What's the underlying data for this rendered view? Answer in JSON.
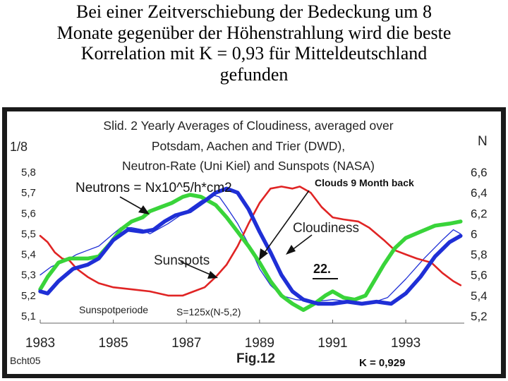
{
  "heading": {
    "line1": "Bei einer Zeitverschiebung der Bedeckung um 8",
    "line2": "Monate gegenüber der Höhenstrahlung wird die beste",
    "line3": "Korrelation mit K = 0,93  für Mitteldeutschland",
    "line4": "gefunden"
  },
  "chart_data": {
    "type": "line",
    "title": [
      "Slid. 2 Yearly Averages of Cloudiness, averaged over",
      "Potsdam, Aachen and Trier (DWD),",
      "Neutron-Rate (Uni Kiel) and Sunspots (NASA)"
    ],
    "ylabel_left": "1/8",
    "ylabel_right": "N",
    "xlim": [
      1983,
      1994.6
    ],
    "ylim_left": [
      5.1,
      5.8
    ],
    "ylim_right": [
      5.2,
      6.6
    ],
    "x_ticks": [
      "1983",
      "1985",
      "1987",
      "1989",
      "1991",
      "1993"
    ],
    "y_ticks_left": [
      "5,8",
      "5,7",
      "5,6",
      "5,5",
      "5,4",
      "5,3",
      "5,2",
      "5,1"
    ],
    "y_ticks_right": [
      "6,6",
      "6,4",
      "6,2",
      "6",
      "5,8",
      "5,6",
      "5,4",
      "5,2"
    ],
    "annotations": {
      "neutrons": "Neutrons = Nx10^5/h*cm2",
      "clouds_back": "Clouds 9 Month back",
      "cloudiness": "Cloudiness",
      "sunspots": "Sunspots",
      "number": "22.",
      "sunspotperiode": "Sunspotperiode",
      "formula": "S=125x(N-5,2)"
    },
    "footer": {
      "left": "Bcht05",
      "center": "Fig.12",
      "right": "K = 0,929"
    },
    "series": [
      {
        "key": "neutrons_thin",
        "color": "#1f2fd6",
        "axis": "left",
        "points": [
          [
            1983.0,
            5.3
          ],
          [
            1983.3,
            5.34
          ],
          [
            1983.7,
            5.37
          ],
          [
            1984.0,
            5.4
          ],
          [
            1984.3,
            5.42
          ],
          [
            1984.6,
            5.44
          ],
          [
            1985.0,
            5.5
          ],
          [
            1985.2,
            5.53
          ],
          [
            1985.5,
            5.53
          ],
          [
            1985.8,
            5.52
          ],
          [
            1986.0,
            5.5
          ],
          [
            1986.5,
            5.55
          ],
          [
            1987.0,
            5.61
          ],
          [
            1987.4,
            5.66
          ],
          [
            1987.7,
            5.69
          ],
          [
            1987.9,
            5.68
          ],
          [
            1988.1,
            5.63
          ],
          [
            1988.4,
            5.55
          ],
          [
            1988.7,
            5.45
          ],
          [
            1989.0,
            5.33
          ],
          [
            1989.3,
            5.25
          ],
          [
            1989.6,
            5.2
          ],
          [
            1990.0,
            5.18
          ],
          [
            1990.5,
            5.17
          ],
          [
            1991.0,
            5.18
          ],
          [
            1991.5,
            5.17
          ],
          [
            1992.0,
            5.16
          ],
          [
            1992.5,
            5.19
          ],
          [
            1993.0,
            5.28
          ],
          [
            1993.5,
            5.38
          ],
          [
            1994.0,
            5.47
          ],
          [
            1994.3,
            5.52
          ],
          [
            1994.5,
            5.5
          ]
        ]
      },
      {
        "key": "sunspots",
        "color": "#e02424",
        "axis": "left",
        "points": [
          [
            1983.0,
            5.49
          ],
          [
            1983.2,
            5.46
          ],
          [
            1983.4,
            5.41
          ],
          [
            1983.6,
            5.38
          ],
          [
            1983.8,
            5.37
          ],
          [
            1984.0,
            5.33
          ],
          [
            1984.3,
            5.29
          ],
          [
            1984.6,
            5.26
          ],
          [
            1985.0,
            5.24
          ],
          [
            1985.5,
            5.23
          ],
          [
            1986.0,
            5.22
          ],
          [
            1986.5,
            5.2
          ],
          [
            1986.9,
            5.2
          ],
          [
            1987.2,
            5.22
          ],
          [
            1987.5,
            5.24
          ],
          [
            1987.8,
            5.29
          ],
          [
            1988.1,
            5.35
          ],
          [
            1988.4,
            5.44
          ],
          [
            1988.7,
            5.55
          ],
          [
            1989.0,
            5.65
          ],
          [
            1989.3,
            5.72
          ],
          [
            1989.6,
            5.73
          ],
          [
            1989.9,
            5.72
          ],
          [
            1990.1,
            5.73
          ],
          [
            1990.4,
            5.7
          ],
          [
            1990.7,
            5.63
          ],
          [
            1991.0,
            5.58
          ],
          [
            1991.3,
            5.57
          ],
          [
            1991.7,
            5.56
          ],
          [
            1992.0,
            5.53
          ],
          [
            1992.4,
            5.47
          ],
          [
            1992.7,
            5.42
          ],
          [
            1993.0,
            5.4
          ],
          [
            1993.3,
            5.38
          ],
          [
            1993.7,
            5.36
          ],
          [
            1994.0,
            5.31
          ],
          [
            1994.3,
            5.27
          ],
          [
            1994.5,
            5.25
          ]
        ]
      },
      {
        "key": "cloudiness",
        "color": "#39d43a",
        "axis": "left",
        "points": [
          [
            1983.0,
            5.23
          ],
          [
            1983.2,
            5.29
          ],
          [
            1983.5,
            5.36
          ],
          [
            1983.8,
            5.38
          ],
          [
            1984.0,
            5.38
          ],
          [
            1984.3,
            5.38
          ],
          [
            1984.6,
            5.39
          ],
          [
            1984.9,
            5.45
          ],
          [
            1985.2,
            5.52
          ],
          [
            1985.5,
            5.56
          ],
          [
            1985.8,
            5.58
          ],
          [
            1986.0,
            5.61
          ],
          [
            1986.3,
            5.63
          ],
          [
            1986.6,
            5.65
          ],
          [
            1986.9,
            5.68
          ],
          [
            1987.1,
            5.69
          ],
          [
            1987.4,
            5.68
          ],
          [
            1987.8,
            5.64
          ],
          [
            1988.1,
            5.58
          ],
          [
            1988.4,
            5.51
          ],
          [
            1988.7,
            5.44
          ],
          [
            1989.0,
            5.36
          ],
          [
            1989.3,
            5.27
          ],
          [
            1989.6,
            5.2
          ],
          [
            1989.9,
            5.16
          ],
          [
            1990.2,
            5.13
          ],
          [
            1990.5,
            5.16
          ],
          [
            1990.8,
            5.2
          ],
          [
            1991.0,
            5.22
          ],
          [
            1991.3,
            5.19
          ],
          [
            1991.6,
            5.18
          ],
          [
            1991.9,
            5.2
          ],
          [
            1992.1,
            5.26
          ],
          [
            1992.4,
            5.35
          ],
          [
            1992.7,
            5.43
          ],
          [
            1993.0,
            5.48
          ],
          [
            1993.4,
            5.51
          ],
          [
            1993.8,
            5.54
          ],
          [
            1994.2,
            5.55
          ],
          [
            1994.5,
            5.56
          ]
        ]
      },
      {
        "key": "neutrons_thick",
        "color": "#1f2fd6",
        "axis": "left",
        "points": [
          [
            1983.0,
            5.22
          ],
          [
            1983.2,
            5.21
          ],
          [
            1983.5,
            5.27
          ],
          [
            1983.9,
            5.33
          ],
          [
            1984.3,
            5.35
          ],
          [
            1984.6,
            5.38
          ],
          [
            1985.0,
            5.47
          ],
          [
            1985.4,
            5.52
          ],
          [
            1985.8,
            5.51
          ],
          [
            1986.1,
            5.52
          ],
          [
            1986.4,
            5.56
          ],
          [
            1986.7,
            5.59
          ],
          [
            1987.1,
            5.61
          ],
          [
            1987.5,
            5.66
          ],
          [
            1987.8,
            5.7
          ],
          [
            1988.1,
            5.72
          ],
          [
            1988.4,
            5.7
          ],
          [
            1988.7,
            5.62
          ],
          [
            1989.0,
            5.51
          ],
          [
            1989.3,
            5.41
          ],
          [
            1989.6,
            5.3
          ],
          [
            1989.9,
            5.22
          ],
          [
            1990.2,
            5.18
          ],
          [
            1990.6,
            5.16
          ],
          [
            1991.0,
            5.16
          ],
          [
            1991.4,
            5.17
          ],
          [
            1991.8,
            5.16
          ],
          [
            1992.2,
            5.17
          ],
          [
            1992.6,
            5.16
          ],
          [
            1993.0,
            5.21
          ],
          [
            1993.4,
            5.29
          ],
          [
            1993.8,
            5.39
          ],
          [
            1994.2,
            5.46
          ],
          [
            1994.5,
            5.49
          ]
        ]
      }
    ]
  }
}
